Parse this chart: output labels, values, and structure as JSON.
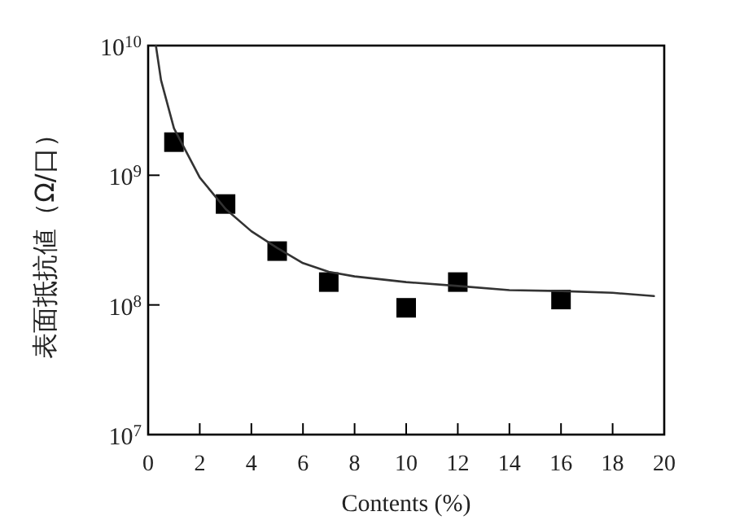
{
  "chart_data": {
    "type": "scatter",
    "xlabel": "Contents (%)",
    "ylabel": "表面抵抗値（Ω/口）",
    "log": "y",
    "xlim": [
      0,
      20
    ],
    "ylim": [
      10000000,
      10000000000
    ],
    "xticks": [
      0,
      2,
      4,
      6,
      8,
      10,
      12,
      14,
      16,
      18,
      20
    ],
    "yticks": [
      {
        "value": 10000000,
        "label": "10$^{7}$"
      },
      {
        "value": 100000000,
        "label": "10$^{8}$"
      },
      {
        "value": 1000000000,
        "label": "10$^{9}$"
      },
      {
        "value": 10000000000,
        "label": "10$^{10}$"
      }
    ],
    "series": [
      {
        "color": "#000000",
        "marker": "square",
        "x": [
          1,
          3,
          5,
          7,
          10,
          12,
          16
        ],
        "values": [
          1800000000,
          600000000,
          260000000,
          150000000,
          95000000,
          150000000,
          110000000
        ]
      },
      {
        "type": "line",
        "color": "#333333",
        "line_style": "solid",
        "x": [
          0.3,
          0.5,
          1,
          2,
          3,
          4,
          5,
          6,
          7,
          8,
          10,
          12,
          14,
          16,
          18,
          19.6
        ],
        "values": [
          10000000000,
          5400000000,
          2300000000,
          960000000,
          550000000,
          370000000,
          275000000,
          210000000,
          180000000,
          166000000,
          150000000,
          140000000,
          130000000,
          128000000,
          124000000,
          117000000
        ]
      }
    ]
  }
}
